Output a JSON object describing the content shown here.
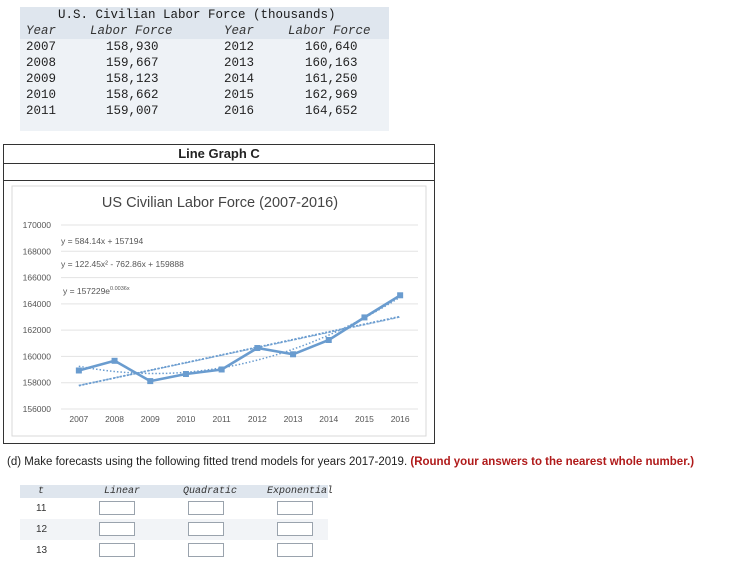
{
  "table": {
    "title": "U.S. Civilian Labor Force (thousands)",
    "headers": [
      "Year",
      "Labor Force",
      "Year",
      "Labor Force"
    ],
    "rows": [
      [
        "2007",
        "158,930",
        "2012",
        "160,640"
      ],
      [
        "2008",
        "159,667",
        "2013",
        "160,163"
      ],
      [
        "2009",
        "158,123",
        "2014",
        "161,250"
      ],
      [
        "2010",
        "158,662",
        "2015",
        "162,969"
      ],
      [
        "2011",
        "159,007",
        "2016",
        "164,652"
      ]
    ]
  },
  "graph_label": "Line Graph C",
  "chart_data": {
    "type": "line",
    "title": "US Civilian Labor Force (2007-2016)",
    "x": [
      "2007",
      "2008",
      "2009",
      "2010",
      "2011",
      "2012",
      "2013",
      "2014",
      "2015",
      "2016"
    ],
    "ylim": [
      156000,
      170000
    ],
    "yticks": [
      "170000",
      "168000",
      "166000",
      "164000",
      "162000",
      "160000",
      "158000",
      "156000"
    ],
    "series": [
      {
        "name": "Labor Force",
        "values": [
          158930,
          159667,
          158123,
          158662,
          159007,
          160640,
          160163,
          161250,
          162969,
          164652
        ]
      }
    ],
    "trend_equations": {
      "linear": "y = 584.14x + 157194",
      "quadratic": "y = 122.45x² - 762.86x + 159888",
      "exponential_base": "y = 157229e",
      "exponential_exp": "0.0036x"
    },
    "color": "#6a9ccf"
  },
  "question": {
    "text": "(d) Make forecasts using the following fitted trend models for years 2017-2019.",
    "note": "(Round your answers to the nearest whole number.)"
  },
  "forecast": {
    "headers": [
      "t",
      "Linear",
      "Quadratic",
      "Exponential"
    ],
    "rows": [
      {
        "t": "11"
      },
      {
        "t": "12"
      },
      {
        "t": "13"
      }
    ]
  }
}
